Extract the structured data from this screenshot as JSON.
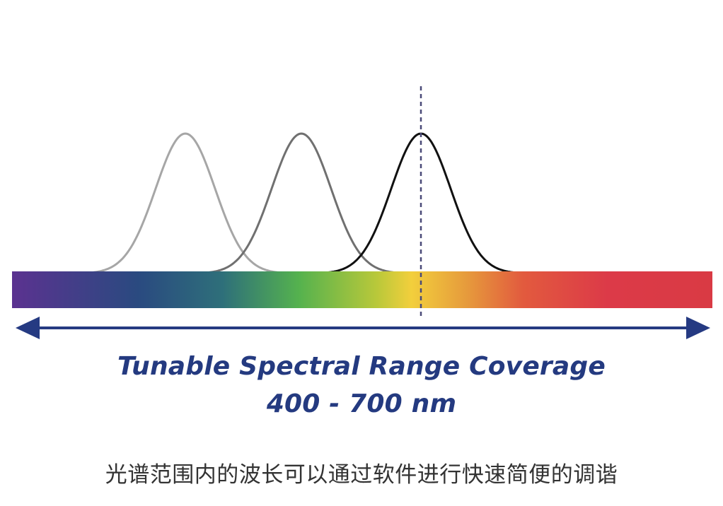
{
  "diagram": {
    "title_line1": "Tunable Spectral Range Coverage",
    "title_line2": "400 - 700 nm",
    "caption": "光谱范围内的波长可以通过软件进行快速简便的调谐",
    "colors": {
      "arrow": "#253a82",
      "marker": "#4a4a78",
      "title": "#243a80",
      "caption": "#333333",
      "curve_1": "#a6a6a6",
      "curve_2": "#707070",
      "curve_3": "#111111"
    },
    "spectrum_gradient": [
      "#5b3290",
      "#2a4a80",
      "#2e6f7a",
      "#55b24e",
      "#b8c83a",
      "#f2cf3c",
      "#e69a3c",
      "#e25a3e",
      "#dc3a48",
      "#d93a44"
    ]
  }
}
